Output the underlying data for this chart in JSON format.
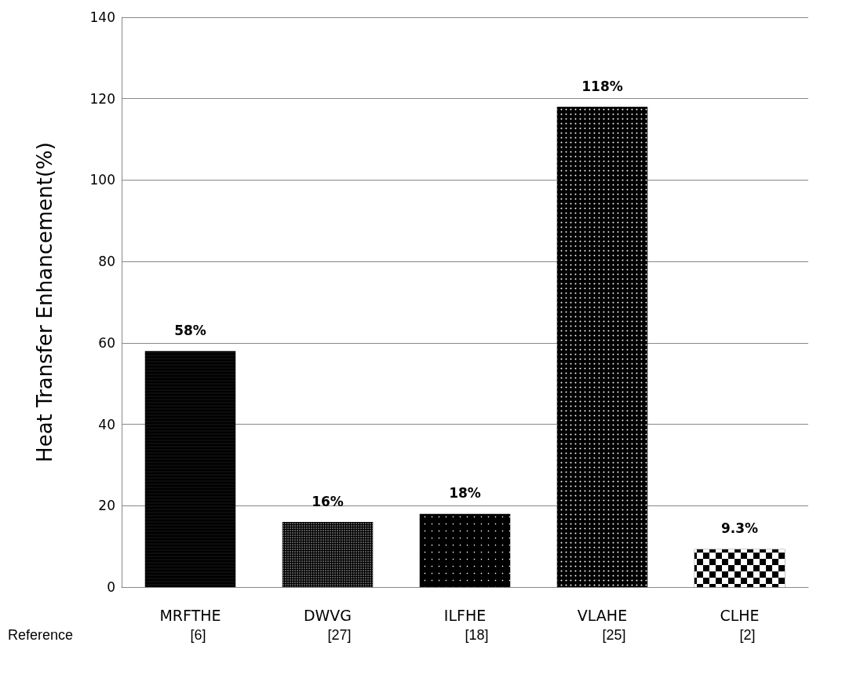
{
  "chart_data": {
    "type": "bar",
    "ylabel": "Heat Transfer Enhancement(%)",
    "categories": [
      "MRFTHE",
      "DWVG",
      "ILFHE",
      "VLAHE",
      "CLHE"
    ],
    "values": [
      58,
      16,
      18,
      118,
      9.3
    ],
    "value_labels": [
      "58%",
      "16%",
      "18%",
      "118%",
      "9.3%"
    ],
    "colors": [
      "#000000",
      "#000000",
      "#000000",
      "#000000",
      "#000000"
    ],
    "ylim": [
      0,
      140
    ],
    "yticks": [
      0,
      20,
      40,
      60,
      80,
      100,
      120,
      140
    ],
    "grid": "y",
    "annotations": [
      "Reference",
      "[6]",
      "[27]",
      "[18]",
      "[25]",
      "[2]"
    ]
  }
}
